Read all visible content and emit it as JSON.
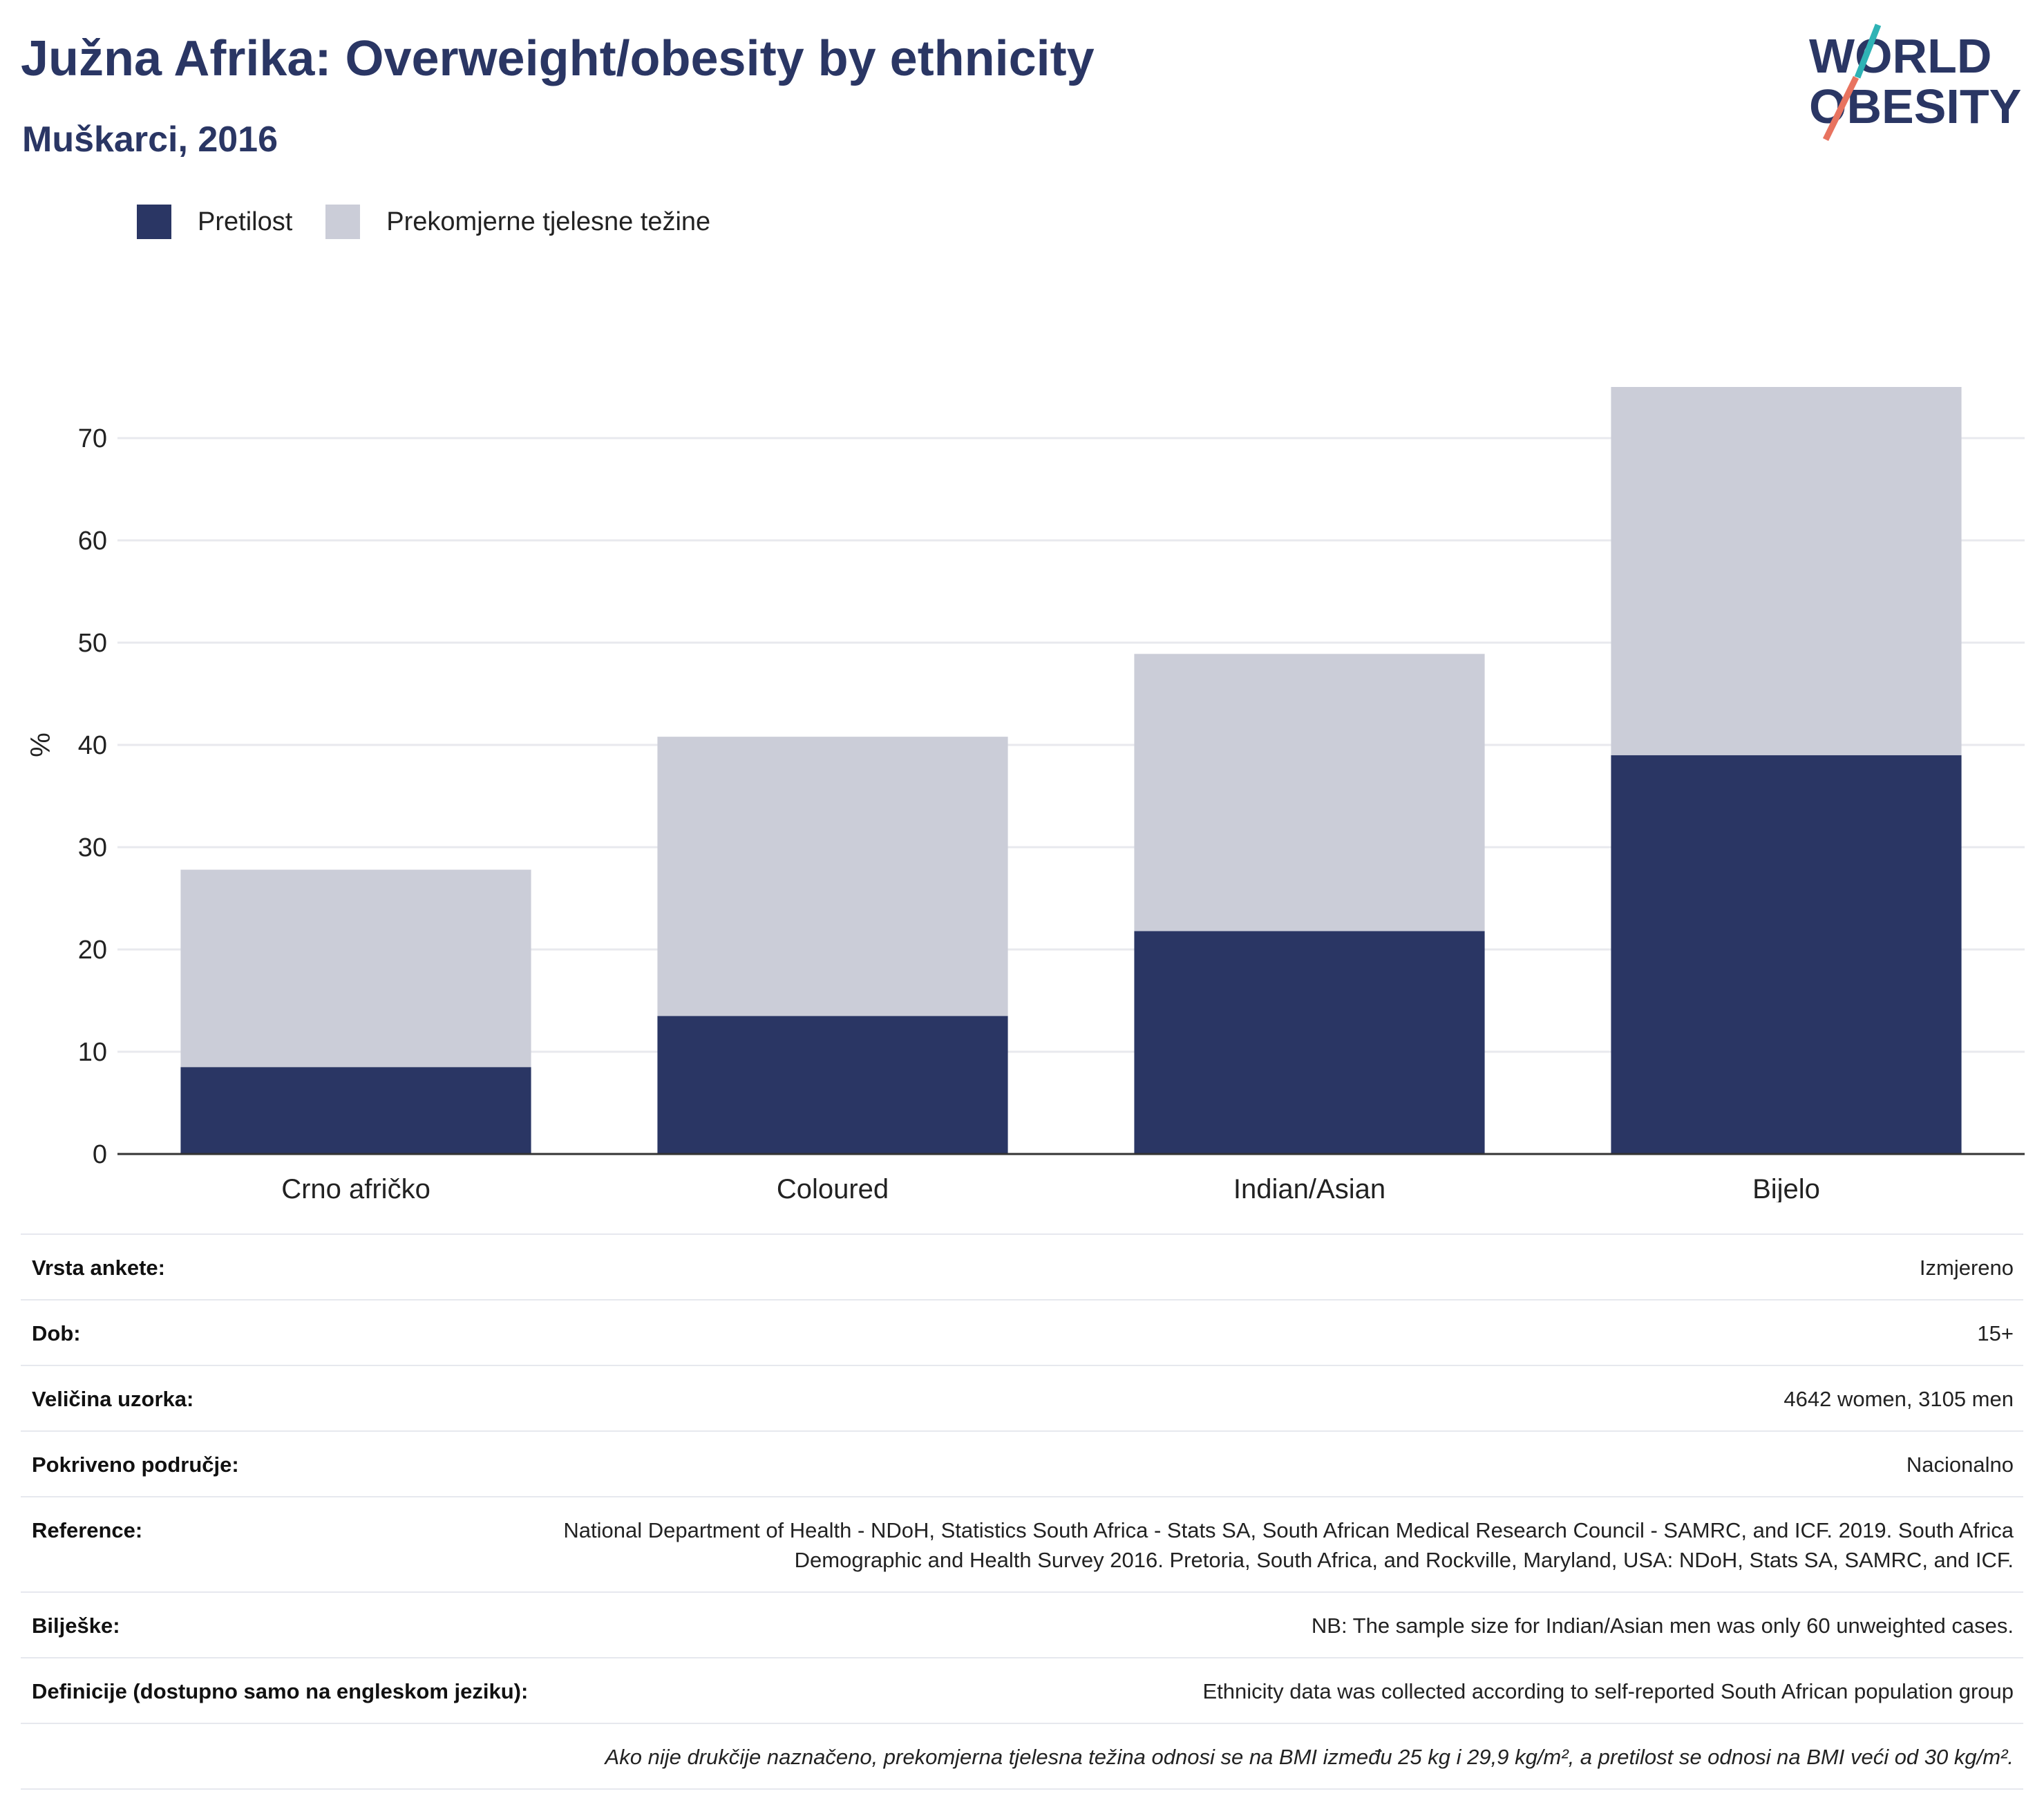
{
  "header": {
    "title": "Južna Afrika: Overweight/obesity by ethnicity",
    "subtitle": "Muškarci, 2016"
  },
  "logo": {
    "line1": "WORLD",
    "line2": "OBESITY"
  },
  "colors": {
    "obesity": "#2a3664",
    "overweight": "#cbcdd8",
    "title": "#2a3664",
    "logo_teal": "#2fb3b5",
    "logo_coral": "#e8735f"
  },
  "chart_data": {
    "type": "bar",
    "stacked": true,
    "categories": [
      "Crno afričko",
      "Coloured",
      "Indian/Asian",
      "Bijelo"
    ],
    "series": [
      {
        "name": "Pretilost",
        "values": [
          8.5,
          13.5,
          21.8,
          39.0
        ]
      },
      {
        "name": "Prekomjerne tjelesne težine",
        "values": [
          19.3,
          27.3,
          27.1,
          36.0
        ]
      }
    ],
    "ylabel": "%",
    "ylim": [
      0,
      80
    ],
    "yticks": [
      0,
      10,
      20,
      30,
      40,
      50,
      60,
      70
    ],
    "grid": true,
    "legend_position": "top-left"
  },
  "info": {
    "rows": [
      {
        "label": "Vrsta ankete:",
        "value": "Izmjereno"
      },
      {
        "label": "Dob:",
        "value": "15+"
      },
      {
        "label": "Veličina uzorka:",
        "value": "4642 women, 3105 men"
      },
      {
        "label": "Pokriveno područje:",
        "value": "Nacionalno"
      },
      {
        "label": "Reference:",
        "value": "National Department of Health - NDoH, Statistics South Africa - Stats SA, South African Medical Research Council - SAMRC, and ICF. 2019. South Africa Demographic and Health Survey 2016. Pretoria, South Africa, and Rockville, Maryland, USA: NDoH, Stats SA, SAMRC, and ICF."
      },
      {
        "label": "Bilješke:",
        "value": "NB: The sample size for Indian/Asian men was only 60 unweighted cases."
      },
      {
        "label": "Definicije (dostupno samo na engleskom jeziku):",
        "value": "Ethnicity data was collected according to self-reported South African population group"
      }
    ],
    "note": "Ako nije drukčije naznačeno, prekomjerna tjelesna težina odnosi se na BMI između 25 kg i 29,9 kg/m², a pretilost se odnosi na BMI veći od 30 kg/m²."
  }
}
